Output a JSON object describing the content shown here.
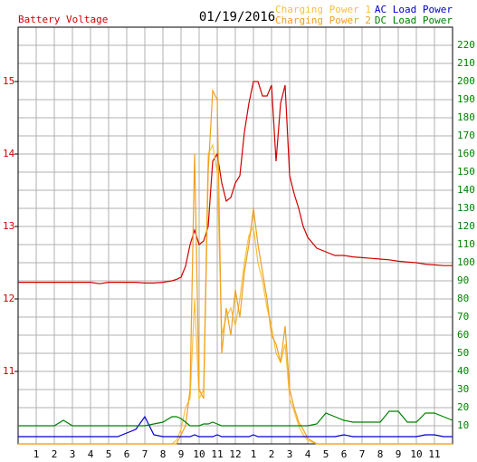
{
  "chart_data": {
    "type": "line",
    "title": "01/19/2016",
    "x": [
      0,
      0.5,
      1,
      1.5,
      2,
      2.5,
      3,
      3.5,
      4,
      4.5,
      5,
      5.5,
      6,
      6.5,
      7,
      7.5,
      8,
      8.5,
      8.75,
      9,
      9.25,
      9.5,
      9.75,
      10,
      10.25,
      10.5,
      10.75,
      11,
      11.25,
      11.5,
      11.75,
      12,
      12.25,
      12.5,
      12.75,
      13,
      13.25,
      13.5,
      13.75,
      14,
      14.25,
      14.5,
      14.75,
      15,
      15.25,
      15.5,
      15.75,
      16,
      16.5,
      17,
      17.5,
      18,
      18.5,
      19,
      19.5,
      20,
      20.5,
      21,
      21.5,
      22,
      22.5,
      23,
      23.5,
      24
    ],
    "xlim": [
      0,
      24
    ],
    "xticks": [
      1,
      2,
      3,
      4,
      5,
      6,
      7,
      8,
      9,
      10,
      11,
      12,
      {
        "value": 13,
        "label": "1"
      },
      {
        "value": 14,
        "label": "2"
      },
      {
        "value": 15,
        "label": "3"
      },
      {
        "value": 16,
        "label": "4"
      },
      {
        "value": 17,
        "label": "5"
      },
      {
        "value": 18,
        "label": "6"
      },
      {
        "value": 19,
        "label": "7"
      },
      {
        "value": 20,
        "label": "8"
      },
      {
        "value": 21,
        "label": "9"
      },
      {
        "value": 22,
        "label": "10"
      },
      {
        "value": 23,
        "label": "11"
      }
    ],
    "ylim": [
      10,
      15.75
    ],
    "yticks": [
      11,
      12,
      13,
      14,
      15
    ],
    "y2lim": [
      0,
      230
    ],
    "y2ticks": [
      10,
      20,
      30,
      40,
      50,
      60,
      70,
      80,
      90,
      100,
      110,
      120,
      130,
      140,
      150,
      160,
      170,
      180,
      190,
      200,
      210,
      220
    ],
    "grid": true,
    "series": [
      {
        "name": "Battery Voltage",
        "color": "#d00000",
        "axis": "y",
        "values": [
          12.23,
          12.23,
          12.23,
          12.23,
          12.23,
          12.23,
          12.23,
          12.23,
          12.23,
          12.21,
          12.23,
          12.23,
          12.23,
          12.23,
          12.22,
          12.22,
          12.23,
          12.25,
          12.27,
          12.3,
          12.45,
          12.75,
          12.95,
          12.75,
          12.8,
          13.0,
          13.9,
          14.0,
          13.6,
          13.35,
          13.4,
          13.6,
          13.7,
          14.3,
          14.7,
          15.0,
          15.0,
          14.8,
          14.8,
          14.95,
          13.9,
          14.7,
          14.95,
          13.7,
          13.45,
          13.25,
          13.0,
          12.85,
          12.7,
          12.65,
          12.6,
          12.6,
          12.58,
          12.57,
          12.56,
          12.55,
          12.54,
          12.52,
          12.51,
          12.5,
          12.48,
          12.47,
          12.46,
          12.46
        ]
      },
      {
        "name": "Charging Power 1",
        "color": "#f8c040",
        "axis": "y2",
        "values": [
          0,
          0,
          0,
          0,
          0,
          0,
          0,
          0,
          0,
          0,
          0,
          0,
          0,
          0,
          0,
          0,
          0,
          0,
          2,
          8,
          20,
          25,
          80,
          25,
          30,
          160,
          165,
          150,
          60,
          70,
          75,
          65,
          80,
          100,
          115,
          120,
          100,
          90,
          75,
          65,
          50,
          45,
          55,
          25,
          18,
          10,
          5,
          2,
          0,
          0,
          0,
          0,
          0,
          0,
          0,
          0,
          0,
          0,
          0,
          0,
          0,
          0,
          0,
          0
        ]
      },
      {
        "name": "Charging Power 2",
        "color": "#f0a020",
        "axis": "y2",
        "values": [
          0,
          0,
          0,
          0,
          0,
          0,
          0,
          0,
          0,
          0,
          0,
          0,
          0,
          0,
          0,
          0,
          0,
          0,
          0,
          5,
          10,
          30,
          160,
          30,
          25,
          150,
          195,
          190,
          50,
          75,
          60,
          85,
          70,
          95,
          110,
          130,
          110,
          95,
          80,
          60,
          55,
          45,
          65,
          30,
          20,
          12,
          8,
          3,
          0,
          0,
          0,
          0,
          0,
          0,
          0,
          0,
          0,
          0,
          0,
          0,
          0,
          0,
          0,
          0
        ]
      },
      {
        "name": "AC Load Power",
        "color": "#0000d0",
        "axis": "y2",
        "values": [
          4,
          4,
          4,
          4,
          4,
          4,
          4,
          4,
          4,
          4,
          4,
          4,
          6,
          8,
          15,
          5,
          4,
          4,
          4,
          4,
          4,
          4,
          5,
          4,
          4,
          4,
          4,
          5,
          4,
          4,
          4,
          4,
          4,
          4,
          4,
          5,
          4,
          4,
          4,
          4,
          4,
          4,
          4,
          4,
          4,
          4,
          4,
          4,
          4,
          4,
          4,
          5,
          4,
          4,
          4,
          4,
          4,
          4,
          4,
          4,
          5,
          5,
          4,
          4
        ]
      },
      {
        "name": "DC Load Power",
        "color": "#008000",
        "axis": "y2",
        "values": [
          10,
          10,
          10,
          10,
          10,
          13,
          10,
          10,
          10,
          10,
          10,
          10,
          10,
          10,
          10,
          11,
          12,
          15,
          15,
          14,
          12,
          10,
          10,
          10,
          11,
          11,
          12,
          11,
          10,
          10,
          10,
          10,
          10,
          10,
          10,
          10,
          10,
          10,
          10,
          10,
          10,
          10,
          10,
          10,
          10,
          10,
          10,
          10,
          11,
          17,
          15,
          13,
          12,
          12,
          12,
          12,
          18,
          18,
          12,
          12,
          17,
          17,
          15,
          13
        ]
      }
    ]
  }
}
